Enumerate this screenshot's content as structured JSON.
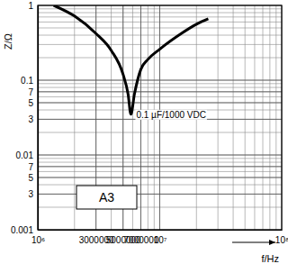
{
  "chart_data": {
    "type": "line",
    "x_label": "f/Hz",
    "y_label": "Z/Ω",
    "annotations": [
      "0.1 µF/1000 VDC",
      "A3"
    ],
    "log": true,
    "grid": true,
    "xlim": [
      1000000,
      100000000
    ],
    "ylim": [
      0.001,
      1
    ],
    "xticks": [
      {
        "value": 1000000,
        "label": "10⁶"
      },
      3000000,
      5000000,
      7000000,
      {
        "value": 10000000,
        "label": "10⁷"
      },
      {
        "value": 100000000,
        "label": "10⁸"
      }
    ],
    "yticks": [
      1,
      0.1,
      {
        "value": 0.07,
        "label": "7"
      },
      {
        "value": 0.05,
        "label": "5"
      },
      {
        "value": 0.03,
        "label": "3"
      },
      0.01,
      {
        "value": 0.007,
        "label": "7"
      },
      {
        "value": 0.005,
        "label": "5"
      },
      {
        "value": 0.003,
        "label": "3"
      },
      0.001
    ],
    "x": [
      1350000,
      2000000,
      3000000,
      4000000,
      5000000,
      5500000,
      5800000,
      6200000,
      7000000,
      8000000,
      10000000,
      15000000,
      20000000,
      25000000
    ],
    "series": [
      {
        "name": "0.1 µF/1000 VDC",
        "color": "#000000",
        "values": [
          1.0,
          0.72,
          0.42,
          0.25,
          0.12,
          0.065,
          0.035,
          0.065,
          0.14,
          0.19,
          0.26,
          0.42,
          0.56,
          0.66
        ]
      }
    ]
  }
}
